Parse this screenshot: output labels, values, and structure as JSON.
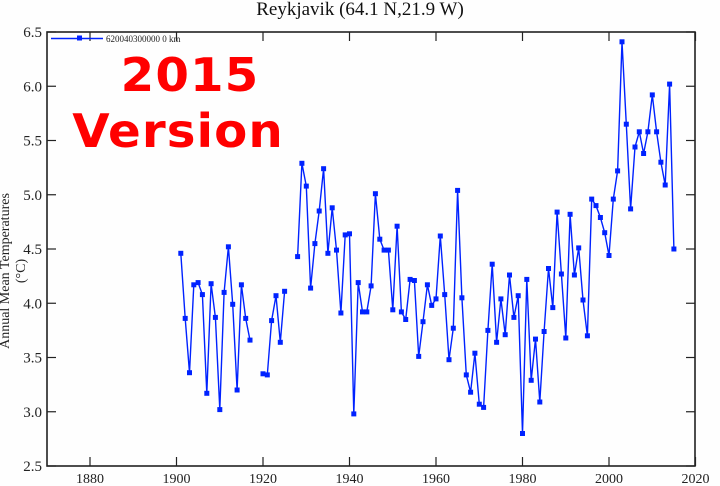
{
  "chart_data": {
    "type": "line",
    "title": "Reykjavik (64.1 N,21.9 W)",
    "xlabel": "",
    "ylabel": "Annual Mean Temperatures (°C)",
    "xlim": [
      1870,
      2020
    ],
    "ylim": [
      2.5,
      6.5
    ],
    "xticks": [
      1880,
      1900,
      1920,
      1940,
      1960,
      1980,
      2000,
      2020
    ],
    "yticks": [
      2.5,
      3.0,
      3.5,
      4.0,
      4.5,
      5.0,
      5.5,
      6.0,
      6.5
    ],
    "ytick_labels": [
      "2.5",
      "3.0",
      "3.5",
      "4.0",
      "4.5",
      "5.0",
      "5.5",
      "6.0",
      "6.5"
    ],
    "grid": false,
    "legend_position": "top-left",
    "series": [
      {
        "name": "620040300000 0 km",
        "color": "#0022ff",
        "marker": "square",
        "segments": [
          {
            "x": [
              1901,
              1902,
              1903,
              1904,
              1905,
              1906,
              1907,
              1908,
              1909,
              1910,
              1911,
              1912,
              1913,
              1914,
              1915,
              1916,
              1917
            ],
            "values": [
              4.46,
              3.86,
              3.36,
              4.17,
              4.19,
              4.08,
              3.17,
              4.18,
              3.87,
              3.02,
              4.1,
              4.52,
              3.99,
              3.2,
              4.17,
              3.86,
              3.66
            ]
          },
          {
            "x": [
              1920,
              1921,
              1922,
              1923,
              1924,
              1925
            ],
            "values": [
              3.35,
              3.34,
              3.84,
              4.07,
              3.64,
              4.11
            ]
          },
          {
            "x": [
              1928,
              1929,
              1930,
              1931,
              1932,
              1933,
              1934,
              1935,
              1936,
              1937,
              1938,
              1939,
              1940,
              1941,
              1942,
              1943,
              1944,
              1945,
              1946,
              1947,
              1948,
              1949,
              1950,
              1951,
              1952,
              1953,
              1954,
              1955,
              1956,
              1957,
              1958,
              1959,
              1960,
              1961,
              1962,
              1963,
              1964,
              1965,
              1966,
              1967,
              1968,
              1969,
              1970,
              1971,
              1972,
              1973,
              1974,
              1975,
              1976,
              1977,
              1978,
              1979,
              1980,
              1981,
              1982,
              1983,
              1984,
              1985,
              1986,
              1987,
              1988,
              1989,
              1990,
              1991,
              1992,
              1993,
              1994,
              1995,
              1996,
              1997,
              1998,
              1999,
              2000,
              2001,
              2002,
              2003,
              2004,
              2005,
              2006,
              2007,
              2008,
              2009,
              2010,
              2011,
              2012,
              2013,
              2014,
              2015
            ],
            "values": [
              4.43,
              5.29,
              5.08,
              4.14,
              4.55,
              4.85,
              5.24,
              4.46,
              4.88,
              4.49,
              3.91,
              4.63,
              4.64,
              2.98,
              4.19,
              3.92,
              3.92,
              4.16,
              5.01,
              4.59,
              4.49,
              4.49,
              3.94,
              4.71,
              3.92,
              3.85,
              4.22,
              4.21,
              3.51,
              3.83,
              4.17,
              3.98,
              4.04,
              4.62,
              4.08,
              3.48,
              3.77,
              5.04,
              4.05,
              3.34,
              3.18,
              3.54,
              3.07,
              3.04,
              3.75,
              4.36,
              3.64,
              4.04,
              3.71,
              4.26,
              3.87,
              4.07,
              2.8,
              4.22,
              3.29,
              3.67,
              3.09,
              3.74,
              4.32,
              3.96,
              4.84,
              4.27,
              3.68,
              4.82,
              4.26,
              4.51,
              4.03,
              3.7,
              4.96,
              4.9,
              4.79,
              4.65,
              4.44,
              4.96,
              5.22,
              6.41,
              5.65,
              4.87,
              5.44,
              5.58,
              5.38,
              5.58,
              5.92,
              5.58,
              5.3,
              5.09,
              6.02,
              4.5
            ]
          }
        ]
      }
    ],
    "annotations": [
      "2015",
      "Version"
    ]
  },
  "labels": {
    "title": "Reykjavik (64.1 N,21.9 W)",
    "ylabel": "Annual Mean Temperatures (°C)",
    "legend": "620040300000  0 km",
    "overlay_line1": "2015",
    "overlay_line2": "Version"
  },
  "colors": {
    "series": "#0022ff",
    "overlay": "#ff0000",
    "axis": "#222222"
  }
}
